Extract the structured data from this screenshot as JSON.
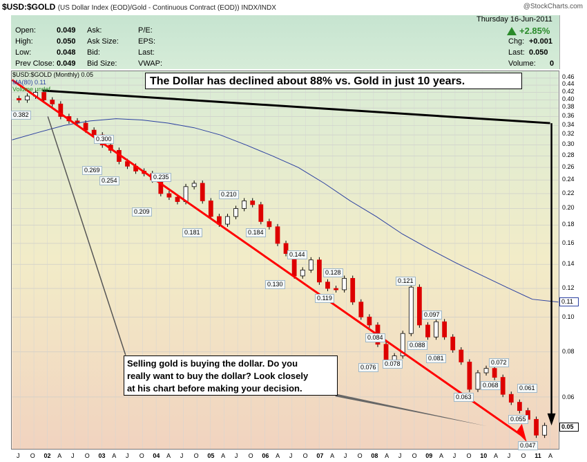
{
  "header": {
    "symbol": "$USD:$GOLD",
    "description": "(US Dollar Index (EOD)/Gold - Continuous Contract (EOD)) INDX/INDX",
    "brand": "@StockCharts.com",
    "date": "Thursday  16-Jun-2011"
  },
  "quote": {
    "open_label": "Open:",
    "open": "0.049",
    "high_label": "High:",
    "high": "0.050",
    "low_label": "Low:",
    "low": "0.048",
    "prev_label": "Prev Close:",
    "prev": "0.049",
    "ask_label": "Ask:",
    "ask": "",
    "asksize_label": "Ask Size:",
    "asksize": "",
    "bid_label": "Bid:",
    "bid": "",
    "bidsize_label": "Bid Size:",
    "bidsize": "",
    "pe_label": "P/E:",
    "eps_label": "EPS:",
    "last_label": "Last:",
    "vwap_label": "VWAP:",
    "pct_change": "+2.85%",
    "chg_label": "Chg:",
    "chg": "+0.001",
    "last2_label": "Last:",
    "last2": "0.050",
    "vol_label": "Volume:",
    "vol": "0"
  },
  "legend": {
    "line1": "$USD:$GOLD (Monthly) 0.05",
    "line2": "MA(80) 0.11",
    "line3": "Volume undef"
  },
  "annotations": {
    "headline": "The Dollar has declined about 88% vs. Gold in just 10 years.",
    "note_line1": "Selling gold is buying the dollar.  Do you",
    "note_line2": "really want to buy the dollar?  Look closely",
    "note_line3": "at his chart before making your decision."
  },
  "colors": {
    "up": "#ffffff",
    "down": "#dd0000",
    "ma": "#2a3fa0",
    "trend": "#ff0000"
  },
  "chart_data": {
    "type": "line",
    "scale": "log",
    "ylim": [
      0.045,
      0.46
    ],
    "y_ticks": [
      "0.46",
      "0.44",
      "0.42",
      "0.40",
      "0.38",
      "0.36",
      "0.34",
      "0.32",
      "0.30",
      "0.28",
      "0.26",
      "0.24",
      "0.22",
      "0.20",
      "0.18",
      "0.16",
      "0.14",
      "0.12",
      "0.10",
      "0.08",
      "0.06"
    ],
    "y_tick_values": [
      0.46,
      0.44,
      0.42,
      0.4,
      0.38,
      0.36,
      0.34,
      0.32,
      0.3,
      0.28,
      0.26,
      0.24,
      0.22,
      0.2,
      0.18,
      0.16,
      0.14,
      0.12,
      0.1,
      0.08,
      0.06
    ],
    "x_ticks": [
      "J",
      "O",
      "02",
      "A",
      "J",
      "O",
      "03",
      "A",
      "J",
      "O",
      "04",
      "A",
      "J",
      "O",
      "05",
      "A",
      "J",
      "O",
      "06",
      "A",
      "J",
      "O",
      "07",
      "A",
      "J",
      "O",
      "08",
      "A",
      "J",
      "O",
      "09",
      "A",
      "J",
      "O",
      "10",
      "A",
      "J",
      "O",
      "11",
      "A"
    ],
    "x_year_ticks": [
      "02",
      "03",
      "04",
      "05",
      "06",
      "07",
      "08",
      "09",
      "10",
      "11"
    ],
    "series": [
      {
        "name": "$USD:$GOLD",
        "values": [
          0.4,
          0.41,
          0.42,
          0.4,
          0.39,
          0.36,
          0.35,
          0.345,
          0.33,
          0.32,
          0.3,
          0.29,
          0.27,
          0.262,
          0.254,
          0.25,
          0.24,
          0.22,
          0.215,
          0.209,
          0.23,
          0.235,
          0.21,
          0.19,
          0.181,
          0.19,
          0.2,
          0.21,
          0.205,
          0.184,
          0.178,
          0.16,
          0.15,
          0.13,
          0.135,
          0.144,
          0.125,
          0.12,
          0.119,
          0.128,
          0.11,
          0.1,
          0.095,
          0.084,
          0.076,
          0.078,
          0.09,
          0.121,
          0.095,
          0.088,
          0.097,
          0.088,
          0.081,
          0.075,
          0.063,
          0.07,
          0.072,
          0.068,
          0.061,
          0.058,
          0.055,
          0.052,
          0.047,
          0.05
        ]
      },
      {
        "name": "MA(80)",
        "values": [
          0.31,
          0.325,
          0.34,
          0.35,
          0.355,
          0.352,
          0.345,
          0.335,
          0.32,
          0.3,
          0.28,
          0.26,
          0.235,
          0.21,
          0.19,
          0.17,
          0.155,
          0.142,
          0.131,
          0.121,
          0.112,
          0.11
        ]
      }
    ],
    "data_labels": [
      "0.382",
      "0.300",
      "0.269",
      "0.254",
      "0.235",
      "0.209",
      "0.210",
      "0.181",
      "0.184",
      "0.144",
      "0.130",
      "0.128",
      "0.119",
      "0.121",
      "0.084",
      "0.076",
      "0.078",
      "0.097",
      "0.088",
      "0.081",
      "0.072",
      "0.063",
      "0.068",
      "0.061",
      "0.055",
      "0.047"
    ],
    "last_value_label": "0.05",
    "ma_value_label": "0.11"
  }
}
